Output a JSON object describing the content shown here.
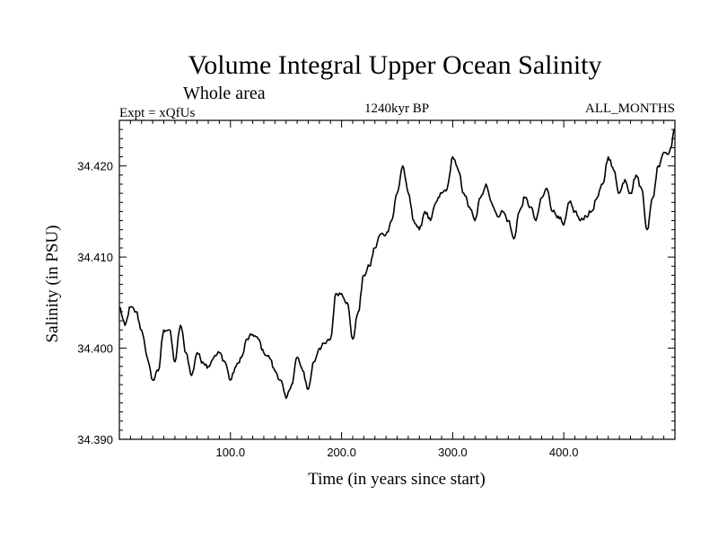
{
  "chart_data": {
    "type": "line",
    "title": "Volume Integral Upper Ocean Salinity",
    "subtitle": "Whole area",
    "experiment_label": "Expt = xQfUs",
    "period_label": "1240kyr BP",
    "months_label": "ALL_MONTHS",
    "xlabel": "Time (in years since start)",
    "ylabel": "Salinity (in PSU)",
    "xlim": [
      0,
      500
    ],
    "ylim": [
      34.39,
      34.425
    ],
    "x_ticks": [
      100,
      200,
      300,
      400
    ],
    "x_tick_labels": [
      "100.0",
      "200.0",
      "300.0",
      "400.0"
    ],
    "y_ticks": [
      34.39,
      34.4,
      34.41,
      34.42
    ],
    "y_tick_labels": [
      "34.390",
      "34.400",
      "34.410",
      "34.420"
    ],
    "grid": false,
    "series": [
      {
        "name": "Salinity",
        "color": "#000000",
        "x": [
          0,
          5,
          10,
          15,
          20,
          25,
          30,
          35,
          40,
          45,
          50,
          55,
          60,
          65,
          70,
          75,
          80,
          85,
          90,
          95,
          100,
          105,
          110,
          115,
          120,
          125,
          130,
          135,
          140,
          145,
          150,
          155,
          160,
          165,
          170,
          175,
          180,
          185,
          190,
          195,
          200,
          205,
          210,
          215,
          220,
          225,
          230,
          235,
          240,
          245,
          250,
          255,
          260,
          265,
          270,
          275,
          280,
          285,
          290,
          295,
          300,
          305,
          310,
          315,
          320,
          325,
          330,
          335,
          340,
          345,
          350,
          355,
          360,
          365,
          370,
          375,
          380,
          385,
          390,
          395,
          400,
          405,
          410,
          415,
          420,
          425,
          430,
          435,
          440,
          445,
          450,
          455,
          460,
          465,
          470,
          475,
          480,
          485,
          490,
          495,
          500
        ],
        "values": [
          34.4045,
          34.4025,
          34.4045,
          34.404,
          34.402,
          34.399,
          34.3965,
          34.3975,
          34.402,
          34.402,
          34.3985,
          34.4025,
          34.3995,
          34.397,
          34.3995,
          34.3985,
          34.398,
          34.399,
          34.3995,
          34.3985,
          34.3965,
          34.398,
          34.399,
          34.401,
          34.4015,
          34.401,
          34.3995,
          34.399,
          34.3975,
          34.3965,
          34.3945,
          34.396,
          34.399,
          34.3975,
          34.3955,
          34.3985,
          34.4,
          34.4005,
          34.401,
          34.406,
          34.406,
          34.405,
          34.401,
          34.404,
          34.408,
          34.409,
          34.411,
          34.4125,
          34.4125,
          34.414,
          34.417,
          34.42,
          34.417,
          34.414,
          34.413,
          34.415,
          34.414,
          34.416,
          34.417,
          34.4175,
          34.421,
          34.4195,
          34.417,
          34.4155,
          34.414,
          34.4165,
          34.418,
          34.416,
          34.4145,
          34.415,
          34.414,
          34.412,
          34.415,
          34.4165,
          34.4155,
          34.414,
          34.4165,
          34.4175,
          34.415,
          34.4145,
          34.4135,
          34.416,
          34.415,
          34.414,
          34.4145,
          34.415,
          34.4165,
          34.418,
          34.421,
          34.4195,
          34.417,
          34.4185,
          34.417,
          34.419,
          34.4175,
          34.413,
          34.4165,
          34.42,
          34.4215,
          34.4215,
          34.424
        ]
      }
    ]
  }
}
